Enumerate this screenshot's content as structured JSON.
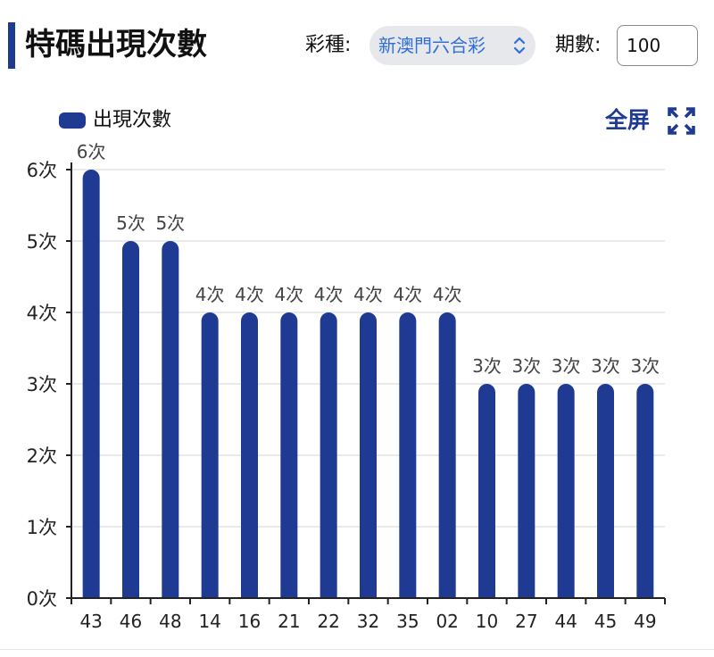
{
  "header": {
    "title": "特碼出現次數",
    "lottery_label": "彩種:",
    "lottery_value": "新澳門六合彩",
    "period_label": "期數:",
    "period_value": "100"
  },
  "toolbar": {
    "fullscreen_label": "全屏"
  },
  "colors": {
    "accent": "#1f3a93",
    "select_text": "#2f6fd8",
    "grid": "#e3e3e3"
  },
  "chart_data": {
    "type": "bar",
    "categories": [
      "43",
      "46",
      "48",
      "14",
      "16",
      "21",
      "22",
      "32",
      "35",
      "02",
      "10",
      "27",
      "44",
      "45",
      "49"
    ],
    "series": [
      {
        "name": "出現次數",
        "values": [
          6,
          5,
          5,
          4,
          4,
          4,
          4,
          4,
          4,
          4,
          3,
          3,
          3,
          3,
          3
        ]
      }
    ],
    "data_labels": [
      "6次",
      "5次",
      "5次",
      "4次",
      "4次",
      "4次",
      "4次",
      "4次",
      "4次",
      "4次",
      "3次",
      "3次",
      "3次",
      "3次",
      "3次"
    ],
    "y_ticks": [
      0,
      1,
      2,
      3,
      4,
      5,
      6
    ],
    "y_tick_labels": [
      "0次",
      "1次",
      "2次",
      "3次",
      "4次",
      "5次",
      "6次"
    ],
    "ylim": [
      0,
      6
    ],
    "grid": true,
    "legend_position": "top-left",
    "title": "",
    "xlabel": "",
    "ylabel": ""
  }
}
